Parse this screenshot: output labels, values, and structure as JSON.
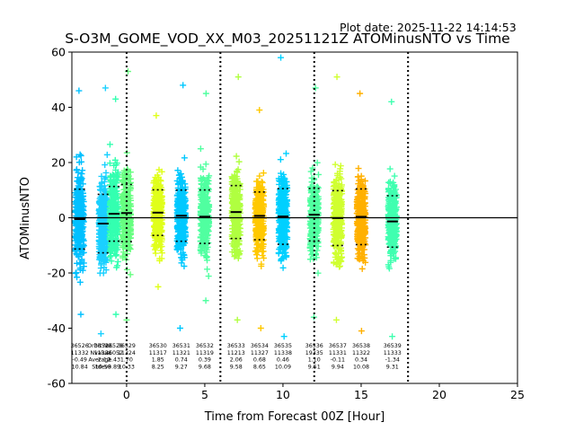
{
  "chart_data": {
    "type": "scatter",
    "plot_date": "Plot date: 2025-11-22 14:14:53",
    "title": "S-O3M_GOME_VOD_XX_M03_20251121Z ATOMinusNTO vs Time",
    "xlabel": "Time from Forecast 00Z [Hour]",
    "ylabel": "ATOMinusNTO",
    "xlim": [
      -3.5,
      25
    ],
    "ylim": [
      -60,
      60
    ],
    "xticks": [
      0,
      5,
      10,
      15,
      20,
      25
    ],
    "yticks": [
      -60,
      -40,
      -20,
      0,
      20,
      40,
      60
    ],
    "zero_line": 0,
    "forecast_markers_x": [
      0,
      6,
      12,
      18
    ],
    "stats_row_labels": [
      "Orbit No.",
      "Nvalue",
      "Average",
      "Stdev"
    ],
    "orbits": [
      {
        "x": -3.0,
        "orbit": "36526",
        "nvalue": "11332",
        "average": "-0.49",
        "stdev": "10.84",
        "color": "#00c0ff",
        "ymin": -35,
        "ymax": 46
      },
      {
        "x": -1.5,
        "orbit": "36527",
        "nvalue": "11321",
        "average": "-2.12",
        "stdev": "10.58",
        "color": "#1ad0ff",
        "ymin": -42,
        "ymax": 47
      },
      {
        "x": -0.8,
        "orbit": "36528",
        "nvalue": "36052",
        "average": "1.43",
        "stdev": "9.89",
        "color": "#33ffb0",
        "ymin": -35,
        "ymax": 43
      },
      {
        "x": 0.0,
        "orbit": "36529",
        "nvalue": "11324",
        "average": "1.70",
        "stdev": "10.33",
        "color": "#66ff80",
        "ymin": -37,
        "ymax": 53
      },
      {
        "x": 2.0,
        "orbit": "36530",
        "nvalue": "11317",
        "average": "1.85",
        "stdev": "8.25",
        "color": "#e0ff1a",
        "ymin": -25,
        "ymax": 37
      },
      {
        "x": 3.5,
        "orbit": "36531",
        "nvalue": "11321",
        "average": "0.74",
        "stdev": "9.27",
        "color": "#00c8ff",
        "ymin": -40,
        "ymax": 48
      },
      {
        "x": 5.0,
        "orbit": "36532",
        "nvalue": "11319",
        "average": "0.39",
        "stdev": "9.68",
        "color": "#50ffa0",
        "ymin": -30,
        "ymax": 45
      },
      {
        "x": 7.0,
        "orbit": "36533",
        "nvalue": "11213",
        "average": "2.06",
        "stdev": "9.58",
        "color": "#b0ff40",
        "ymin": -37,
        "ymax": 51
      },
      {
        "x": 8.5,
        "orbit": "36534",
        "nvalue": "11327",
        "average": "0.68",
        "stdev": "8.65",
        "color": "#ffc800",
        "ymin": -40,
        "ymax": 39
      },
      {
        "x": 10.0,
        "orbit": "36535",
        "nvalue": "11338",
        "average": "0.46",
        "stdev": "10.09",
        "color": "#00d0ff",
        "ymin": -43,
        "ymax": 58
      },
      {
        "x": 12.0,
        "orbit": "36536",
        "nvalue": "19335",
        "average": "1.10",
        "stdev": "9.51",
        "color": "#50ffa0",
        "ymin": -36,
        "ymax": 47
      },
      {
        "x": 13.5,
        "orbit": "36537",
        "nvalue": "11331",
        "average": "-0.11",
        "stdev": "9.94",
        "color": "#d0ff30",
        "ymin": -37,
        "ymax": 51
      },
      {
        "x": 15.0,
        "orbit": "36538",
        "nvalue": "11322",
        "average": "0.34",
        "stdev": "10.08",
        "color": "#ffb000",
        "ymin": -41,
        "ymax": 45
      },
      {
        "x": 17.0,
        "orbit": "36539",
        "nvalue": "11333",
        "average": "-1.34",
        "stdev": "9.31",
        "color": "#40ffb0",
        "ymin": -43,
        "ymax": 42
      }
    ]
  }
}
